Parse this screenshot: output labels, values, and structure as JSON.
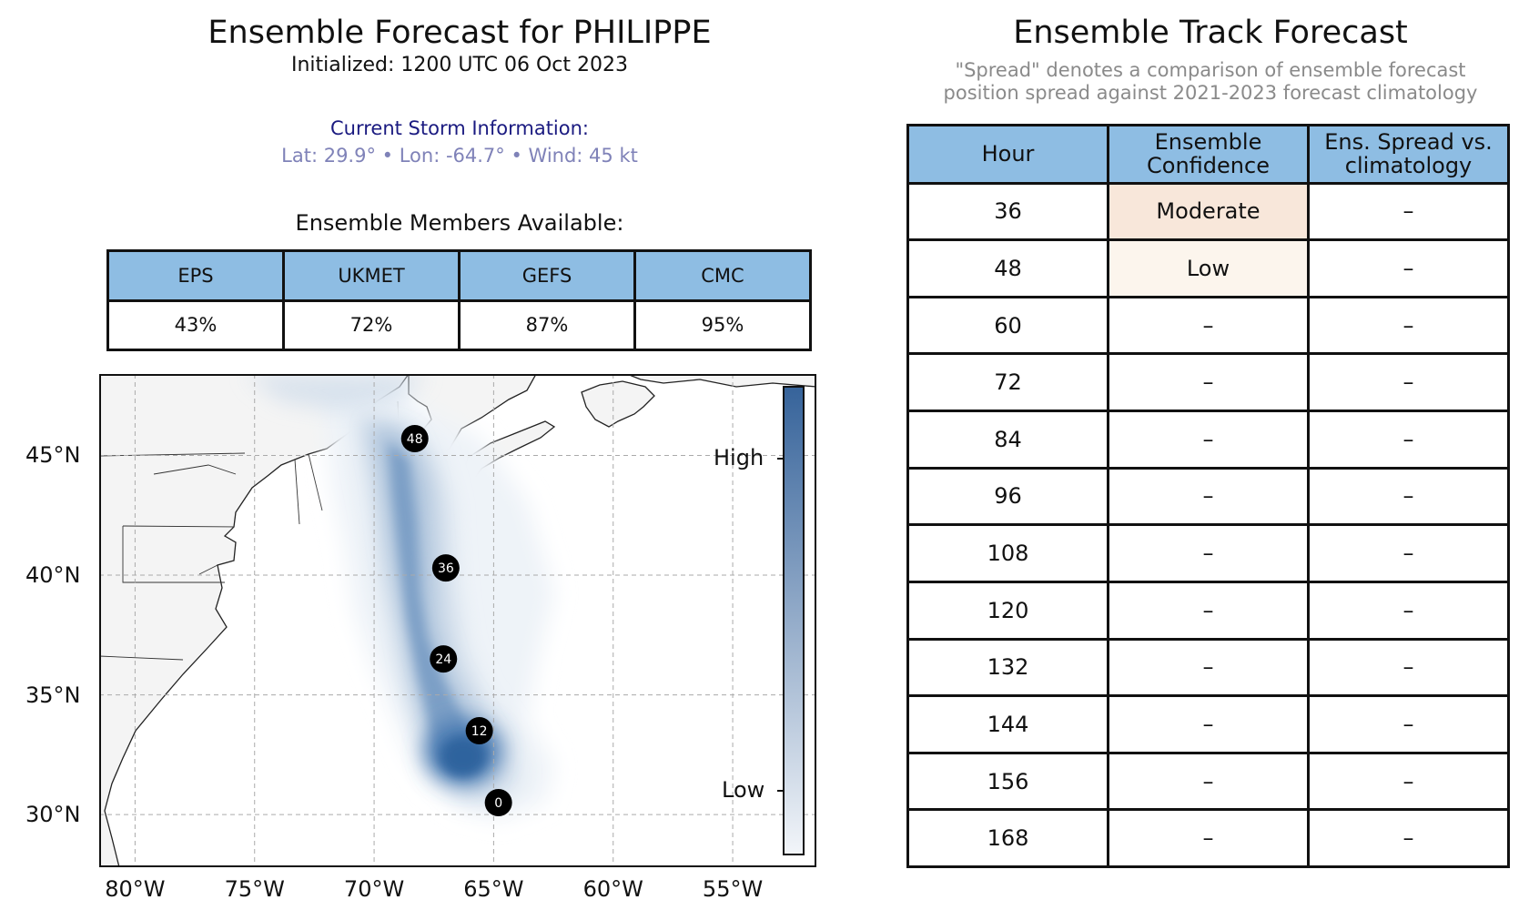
{
  "header": {
    "title": "Ensemble Forecast for PHILIPPE",
    "initialized": "Initialized: 1200 UTC 06 Oct 2023",
    "storm_heading": "Current Storm Information:",
    "storm_info": "Lat: 29.9°  •  Lon: -64.7°  •  Wind: 45 kt",
    "members_heading": "Ensemble Members Available:"
  },
  "members": {
    "headers": [
      "EPS",
      "UKMET",
      "GEFS",
      "CMC"
    ],
    "values": [
      "43%",
      "72%",
      "87%",
      "95%"
    ]
  },
  "track": {
    "title": "Ensemble Track Forecast",
    "subtitle_1": "\"Spread\" denotes a comparison of ensemble forecast",
    "subtitle_2": "position spread against 2021-2023 forecast climatology",
    "headers": [
      "Hour",
      "Ensemble\nConfidence",
      "Ens. Spread vs.\nclimatology"
    ],
    "rows": [
      [
        "36",
        "Moderate",
        "–"
      ],
      [
        "48",
        "Low",
        "–"
      ],
      [
        "60",
        "–",
        "–"
      ],
      [
        "72",
        "–",
        "–"
      ],
      [
        "84",
        "–",
        "–"
      ],
      [
        "96",
        "–",
        "–"
      ],
      [
        "108",
        "–",
        "–"
      ],
      [
        "120",
        "–",
        "–"
      ],
      [
        "132",
        "–",
        "–"
      ],
      [
        "144",
        "–",
        "–"
      ],
      [
        "156",
        "–",
        "–"
      ],
      [
        "168",
        "–",
        "–"
      ]
    ],
    "confidence_colors": {
      "Moderate": "#f8e7da",
      "Low": "#fcf5ed"
    }
  },
  "chart_data": {
    "type": "scatter",
    "title": "",
    "xlabel": "",
    "ylabel": "",
    "xlim": [
      -81.5,
      -51.5
    ],
    "ylim": [
      27.8,
      48.4
    ],
    "x_ticks": [
      -80,
      -75,
      -70,
      -65,
      -60,
      -55
    ],
    "x_tick_labels": [
      "80°W",
      "75°W",
      "70°W",
      "65°W",
      "60°W",
      "55°W"
    ],
    "y_ticks": [
      30,
      35,
      40,
      45
    ],
    "y_tick_labels": [
      "30°N",
      "35°N",
      "40°N",
      "45°N"
    ],
    "grid": true,
    "track_points": [
      {
        "hour": "0",
        "lon": -64.8,
        "lat": 30.5
      },
      {
        "hour": "12",
        "lon": -65.6,
        "lat": 33.5
      },
      {
        "hour": "24",
        "lon": -67.1,
        "lat": 36.5
      },
      {
        "hour": "36",
        "lon": -67.0,
        "lat": 40.3
      },
      {
        "hour": "48",
        "lon": -68.3,
        "lat": 45.7
      }
    ],
    "colorbar": {
      "high_label": "High",
      "low_label": "Low",
      "colors": [
        "#f2f5f9",
        "#36639a"
      ]
    },
    "colors": {
      "land": "#f4f4f4",
      "ocean": "#ffffff",
      "density_dark": "#2f639e",
      "density_light": "#eef3f8"
    }
  }
}
